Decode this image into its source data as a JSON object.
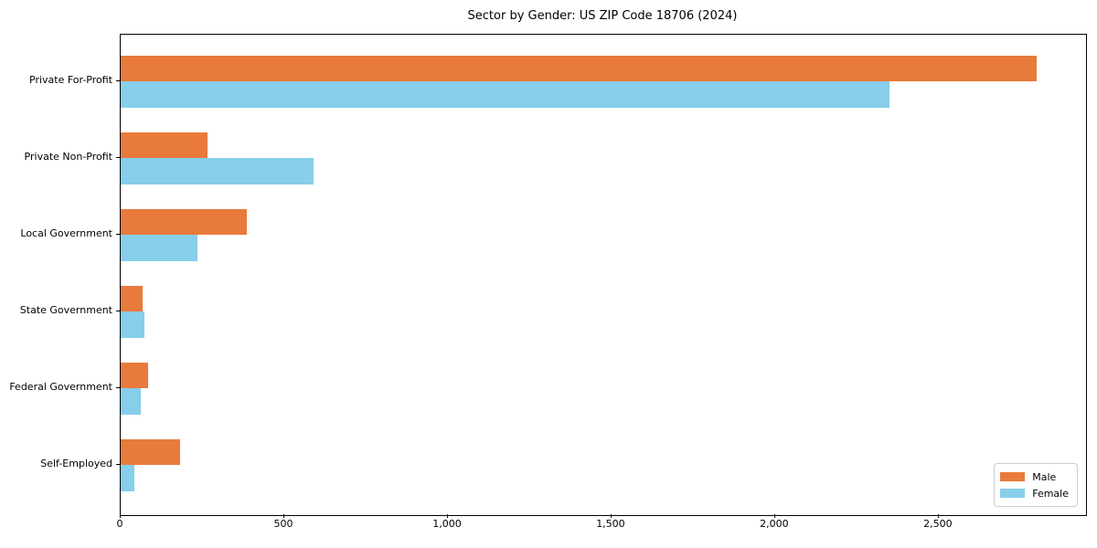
{
  "title": "Sector by Gender: US ZIP Code 18706 (2024)",
  "chart_data": {
    "type": "bar",
    "orientation": "horizontal",
    "title": "Sector by Gender: US ZIP Code 18706 (2024)",
    "categories": [
      "Private For-Profit",
      "Private Non-Profit",
      "Local Government",
      "State Government",
      "Federal Government",
      "Self-Employed"
    ],
    "series": [
      {
        "name": "Male",
        "color": "#e87a3c",
        "values": [
          2800,
          265,
          385,
          67,
          84,
          182
        ]
      },
      {
        "name": "Female",
        "color": "#87ceeb",
        "values": [
          2350,
          590,
          235,
          73,
          62,
          42
        ]
      }
    ],
    "xlabel": "",
    "ylabel": "",
    "xlim": [
      0,
      2950
    ],
    "xticks": [
      0,
      500,
      1000,
      1500,
      2000,
      2500
    ],
    "xtick_labels": [
      "0",
      "500",
      "1,000",
      "1,500",
      "2,000",
      "2,500"
    ],
    "grid": false,
    "legend": {
      "position": "lower right",
      "entries": [
        "Male",
        "Female"
      ]
    }
  }
}
